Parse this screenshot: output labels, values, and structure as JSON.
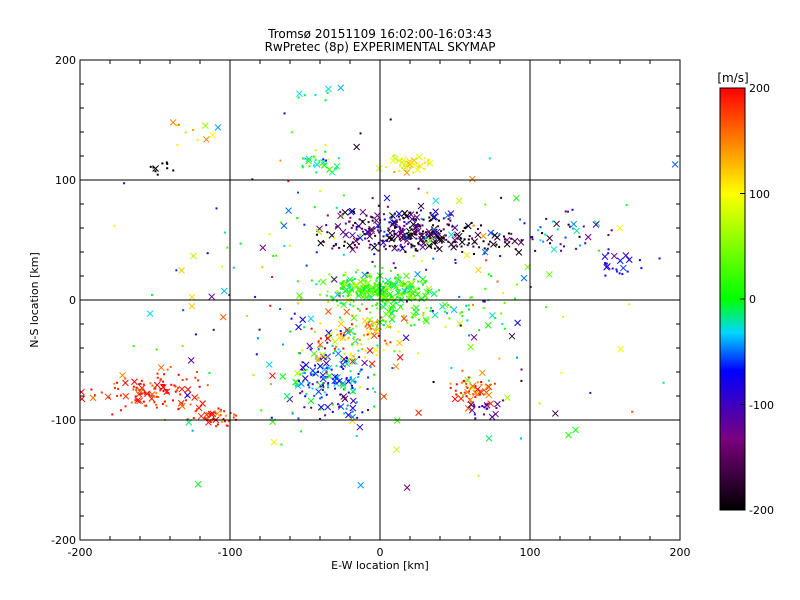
{
  "chart_data": {
    "type": "scatter",
    "title": "Tromsø 20151109 16:02:00-16:03:43",
    "subtitle": "RwPretec (8p) EXPERIMENTAL SKYMAP",
    "xlabel": "E-W location [km]",
    "ylabel": "N-S location [km]",
    "xlim": [
      -200,
      200
    ],
    "ylim": [
      -200,
      200
    ],
    "xticks": [
      "-200",
      "-100",
      "0",
      "100",
      "200"
    ],
    "yticks": [
      "-200",
      "-100",
      "0",
      "100",
      "200"
    ],
    "grid": true,
    "colorbar": {
      "label": "[m/s]",
      "range": [
        -200,
        200
      ],
      "ticks": [
        "-200",
        "-100",
        "0",
        "100",
        "200"
      ],
      "colors": [
        "#000000",
        "#7a0080",
        "#0000ff",
        "#00d8ff",
        "#00ff00",
        "#ffff00",
        "#ff0000"
      ]
    },
    "markers": {
      "cross": "large x (high-SNR detections)",
      "dot": "small dot"
    },
    "clusters": [
      {
        "x": 10,
        "y": 60,
        "sx": 30,
        "sy": 12,
        "n": 220,
        "v": -150,
        "vs": 80
      },
      {
        "x": 40,
        "y": 50,
        "sx": 45,
        "sy": 8,
        "n": 120,
        "v": -180,
        "vs": 40
      },
      {
        "x": 120,
        "y": 55,
        "sx": 25,
        "sy": 12,
        "n": 40,
        "v": -90,
        "vs": 80
      },
      {
        "x": 160,
        "y": 30,
        "sx": 12,
        "sy": 8,
        "n": 20,
        "v": -80,
        "vs": 20
      },
      {
        "x": 0,
        "y": 8,
        "sx": 25,
        "sy": 10,
        "n": 260,
        "v": 20,
        "vs": 40
      },
      {
        "x": 30,
        "y": -10,
        "sx": 30,
        "sy": 10,
        "n": 60,
        "v": 10,
        "vs": 50
      },
      {
        "x": -30,
        "y": -65,
        "sx": 20,
        "sy": 25,
        "n": 180,
        "v": -60,
        "vs": 70
      },
      {
        "x": -10,
        "y": -30,
        "sx": 25,
        "sy": 15,
        "n": 80,
        "v": 140,
        "vs": 80
      },
      {
        "x": -150,
        "y": -75,
        "sx": 25,
        "sy": 12,
        "n": 120,
        "v": 190,
        "vs": 30
      },
      {
        "x": -110,
        "y": -98,
        "sx": 12,
        "sy": 6,
        "n": 40,
        "v": 180,
        "vs": 40
      },
      {
        "x": 60,
        "y": -75,
        "sx": 10,
        "sy": 8,
        "n": 50,
        "v": 180,
        "vs": 50
      },
      {
        "x": 70,
        "y": -90,
        "sx": 8,
        "sy": 6,
        "n": 20,
        "v": -120,
        "vs": 30
      },
      {
        "x": 20,
        "y": 113,
        "sx": 12,
        "sy": 5,
        "n": 40,
        "v": 100,
        "vs": 30
      },
      {
        "x": -40,
        "y": 115,
        "sx": 10,
        "sy": 6,
        "n": 30,
        "v": 0,
        "vs": 60
      },
      {
        "x": -130,
        "y": 140,
        "sx": 15,
        "sy": 8,
        "n": 10,
        "v": 100,
        "vs": 80
      },
      {
        "x": -145,
        "y": 110,
        "sx": 8,
        "sy": 5,
        "n": 10,
        "v": -200,
        "vs": 10
      },
      {
        "x": -40,
        "y": 175,
        "sx": 12,
        "sy": 6,
        "n": 8,
        "v": -20,
        "vs": 30
      },
      {
        "x": 0,
        "y": 0,
        "sx": 110,
        "sy": 90,
        "n": 260,
        "v": 0,
        "vs": 140
      }
    ]
  }
}
